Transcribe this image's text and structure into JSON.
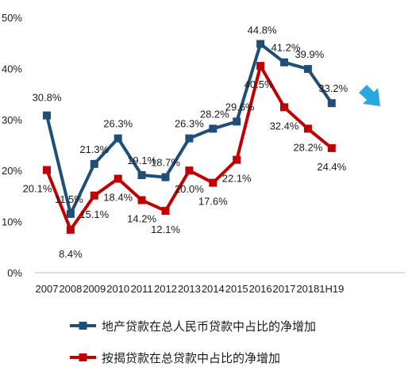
{
  "chart_data": {
    "type": "line",
    "categories": [
      "2007",
      "2008",
      "2009",
      "2010",
      "2011",
      "2012",
      "2013",
      "2014",
      "2015",
      "2016",
      "2017",
      "2018",
      "1H19"
    ],
    "ylim": [
      0,
      50
    ],
    "yticks": [
      "0%",
      "10%",
      "20%",
      "30%",
      "40%",
      "50%"
    ],
    "grid": false,
    "legend_placement": "bottom",
    "series": [
      {
        "name": "地产贷款在总人民币贷款中占比的净增加",
        "color": "#1f4e79",
        "values": [
          30.8,
          11.5,
          21.3,
          26.3,
          19.1,
          18.7,
          26.3,
          28.2,
          29.6,
          44.8,
          41.2,
          39.9,
          33.2
        ],
        "labels": [
          "30.8%",
          "11.5%",
          "21.3%",
          "26.3%",
          "19.1%",
          "18.7%",
          "26.3%",
          "28.2%",
          "29.6%",
          "44.8%",
          "41.2%",
          "39.9%",
          "33.2%"
        ]
      },
      {
        "name": "按揭贷款在总贷款中占比的净增加",
        "color": "#c00000",
        "values": [
          20.1,
          8.4,
          15.1,
          18.4,
          14.2,
          12.1,
          20.0,
          17.6,
          22.1,
          40.5,
          32.4,
          28.2,
          24.4
        ],
        "labels": [
          "20.1%",
          "8.4%",
          "15.1%",
          "18.4%",
          "14.2%",
          "12.1%",
          "20.0%",
          "17.6%",
          "22.1%",
          "40.5%",
          "32.4%",
          "28.2%",
          "24.4%"
        ]
      }
    ],
    "annotation_arrow_color": "#29a8e0"
  }
}
